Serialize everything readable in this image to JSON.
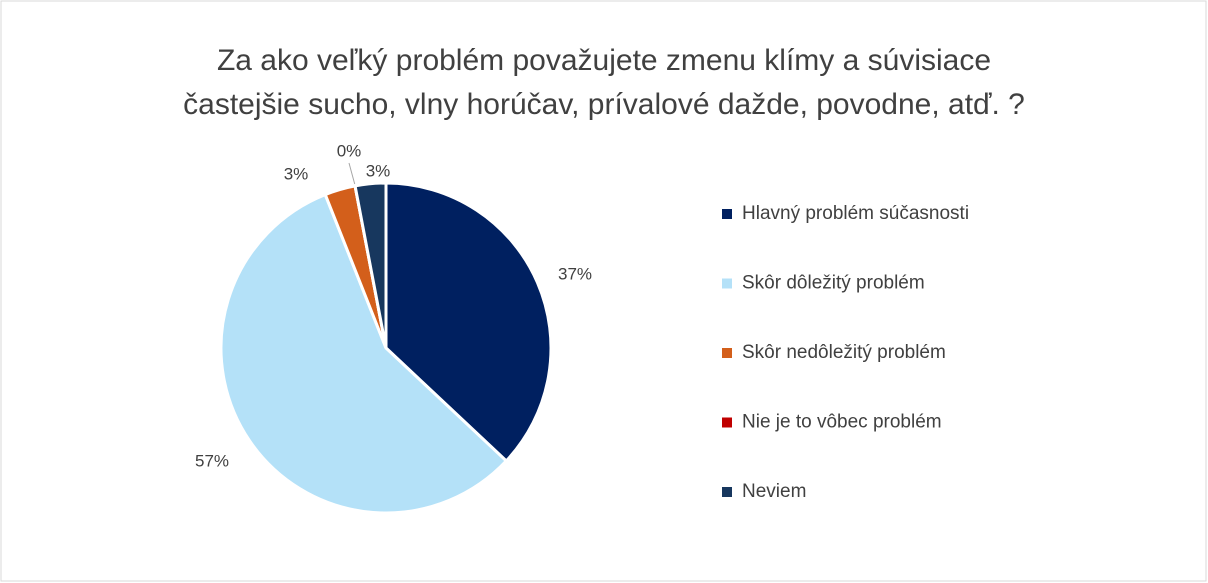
{
  "chart_data": {
    "type": "pie",
    "title": [
      "Za ako veľký problém považujete zmenu klímy a súvisiace",
      "častejšie sucho, vlny horúčav, prívalové dažde, povodne, atď. ?"
    ],
    "categories": [
      "Hlavný problém súčasnosti",
      "Skôr dôležitý problém",
      "Skôr nedôležitý problém",
      "Nie je to vôbec problém",
      "Neviem"
    ],
    "values": [
      37,
      57,
      3,
      0,
      3
    ],
    "value_labels": [
      "37%",
      "57%",
      "3%",
      "0%",
      "3%"
    ],
    "colors": [
      "#002060",
      "#b4e1f8",
      "#d35f1b",
      "#c00000",
      "#17375e"
    ],
    "legend": "right"
  }
}
